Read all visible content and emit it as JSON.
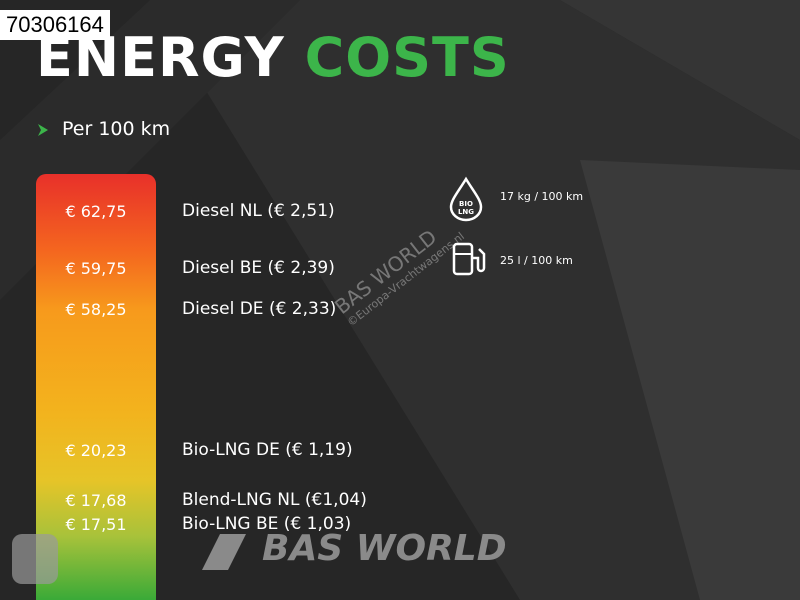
{
  "id_label": "70306164",
  "title": {
    "part1": "ENERGY",
    "part2": "COSTS"
  },
  "subtitle": "Per 100 km",
  "items": [
    {
      "price": "€ 62,75",
      "label": "Diesel NL (€ 2,51)"
    },
    {
      "price": "€ 59,75",
      "label": "Diesel BE (€ 2,39)"
    },
    {
      "price": "€ 58,25",
      "label": "Diesel DE (€ 2,33)"
    },
    {
      "price": "€ 20,23",
      "label": "Bio-LNG DE (€ 1,19)"
    },
    {
      "price": "€ 17,68",
      "label": "Blend-LNG NL (€1,04)"
    },
    {
      "price": "€ 17,51",
      "label": "Bio-LNG BE (€ 1,03)"
    }
  ],
  "consumption": [
    {
      "icon_text": [
        "BIO",
        "LNG"
      ],
      "text": "17 kg / 100 km"
    },
    {
      "text": "25 l / 100 km"
    }
  ],
  "watermark": {
    "brand": "BAS WORLD",
    "sub": "©Europa-Vrachtwagens.nl"
  },
  "logo": "BAS WORLD"
}
